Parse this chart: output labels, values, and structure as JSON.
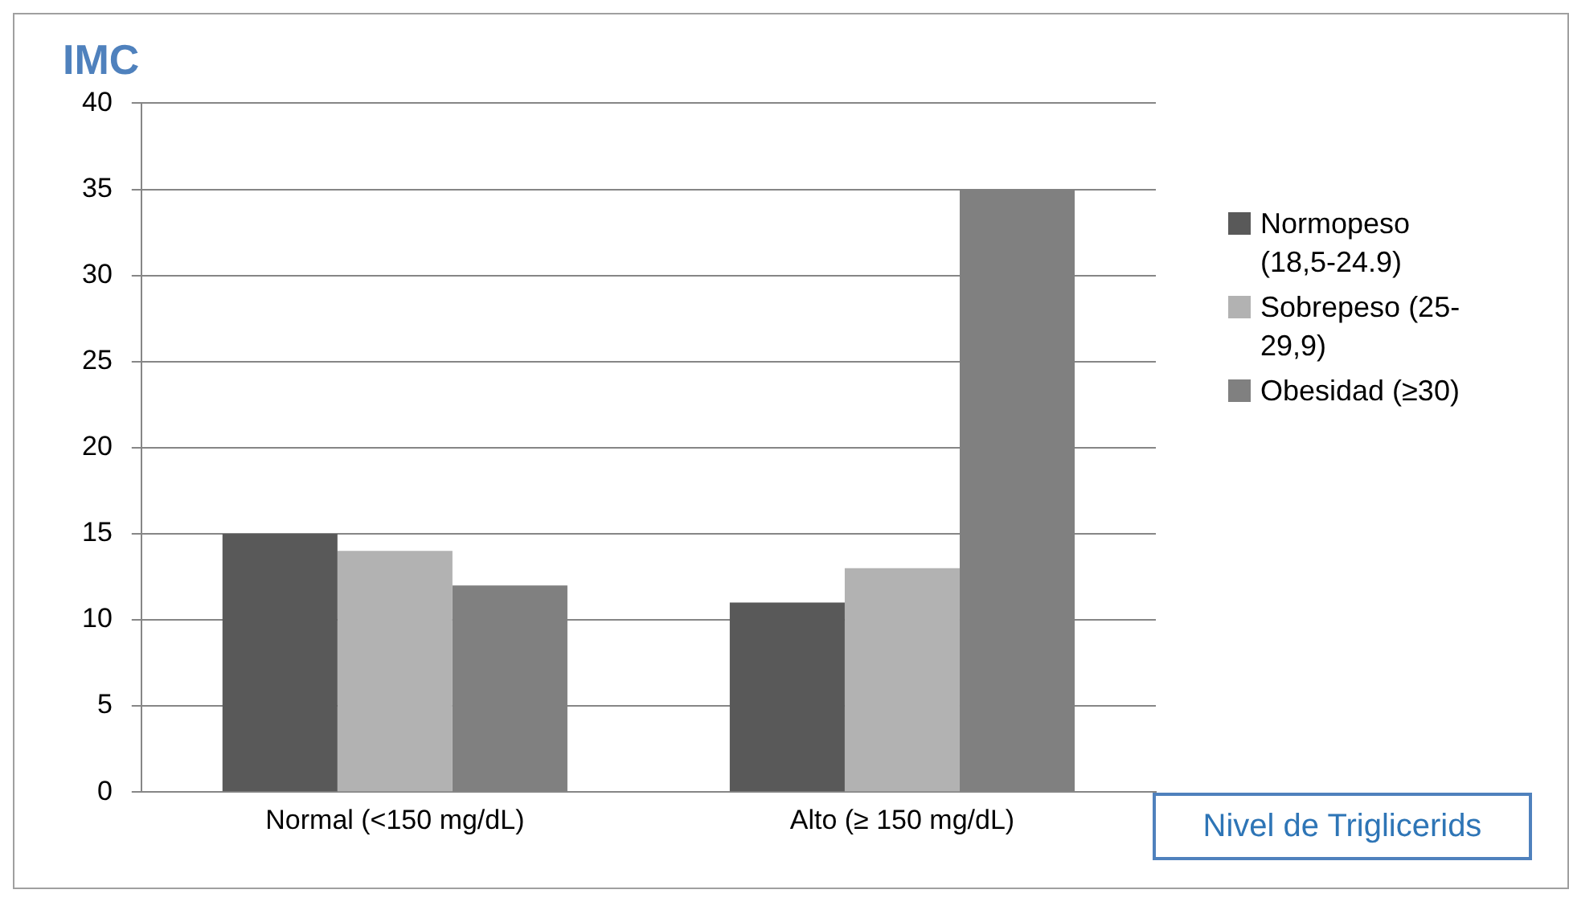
{
  "chart_data": {
    "type": "bar",
    "title": "IMC",
    "xlabel": "Nivel de Triglicerids",
    "categories": [
      "Normal (<150 mg/dL)",
      "Alto (≥ 150 mg/dL)"
    ],
    "series": [
      {
        "name": "Normopeso (18,5-24.9)",
        "color": "#595959",
        "values": [
          15,
          11
        ]
      },
      {
        "name": "Sobrepeso (25-29,9)",
        "color": "#b2b2b2",
        "values": [
          14,
          13
        ]
      },
      {
        "name": "Obesidad (≥30)",
        "color": "#808080",
        "values": [
          12,
          35
        ]
      }
    ],
    "ylim": [
      0,
      40
    ],
    "yticks": [
      0,
      5,
      10,
      15,
      20,
      25,
      30,
      35,
      40
    ],
    "grid": "y",
    "legend": "right"
  }
}
